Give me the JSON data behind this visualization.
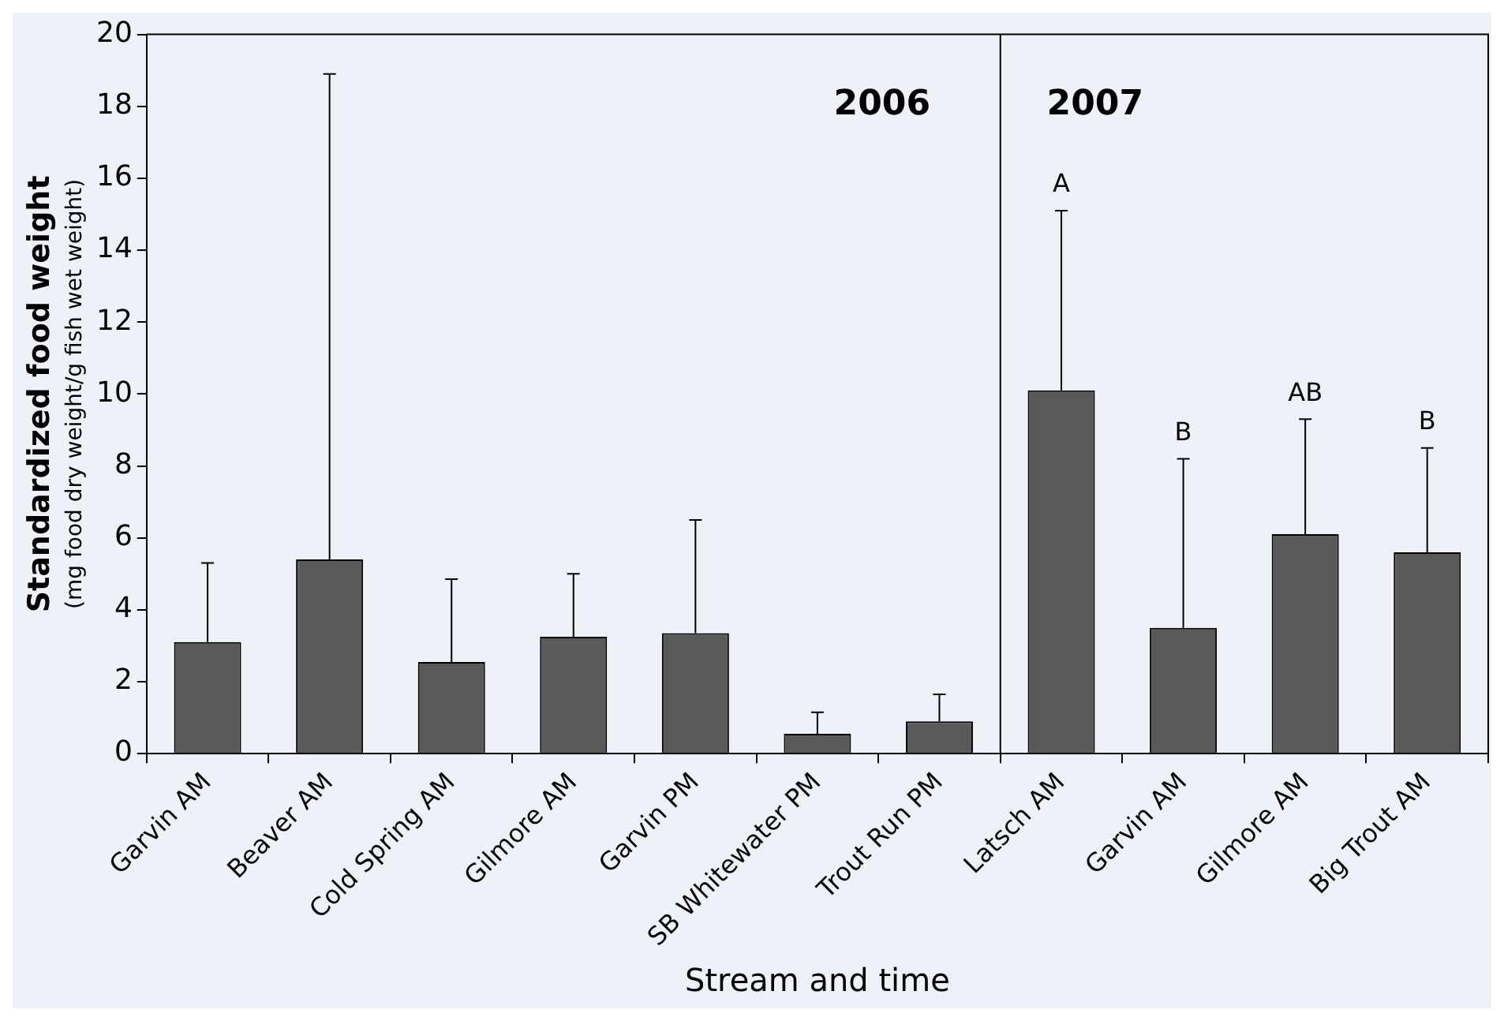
{
  "chart_data": {
    "type": "bar",
    "xlabel": "Stream and time",
    "ylabel": "Standardized food weight\n(mg food dry weight/g fish wet weight)",
    "categories": [
      "Garvin AM",
      "Beaver AM",
      "Cold Spring AM",
      "Gilmore AM",
      "Garvin PM",
      "SB Whitewater PM",
      "Trout Run PM",
      "Latsch AM",
      "Garvin AM",
      "Gilmore AM",
      "Big Trout AM"
    ],
    "values": [
      3.1,
      5.4,
      2.55,
      3.25,
      3.35,
      0.55,
      0.9,
      10.1,
      3.5,
      6.1,
      5.6
    ],
    "errors": [
      [
        3.1,
        5.3
      ],
      [
        5.4,
        18.9
      ],
      [
        2.55,
        4.85
      ],
      [
        3.25,
        5.0
      ],
      [
        3.35,
        6.5
      ],
      [
        0.55,
        1.15
      ],
      [
        0.9,
        1.65
      ],
      [
        10.1,
        15.1
      ],
      [
        3.5,
        8.2
      ],
      [
        6.1,
        9.3
      ],
      [
        5.6,
        8.5
      ]
    ],
    "color": "#595959",
    "ylim": [
      0,
      20
    ],
    "yticks": [
      0,
      2,
      4,
      6,
      8,
      10,
      12,
      14,
      16,
      18,
      20
    ],
    "grid": false,
    "legend": false,
    "annotations": [
      "2006",
      "2007",
      "A",
      "B",
      "AB",
      "B"
    ]
  }
}
